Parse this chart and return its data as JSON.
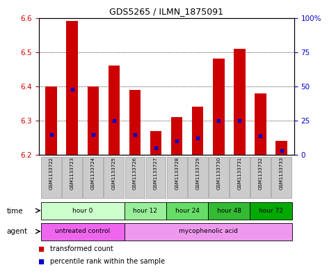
{
  "title": "GDS5265 / ILMN_1875091",
  "samples": [
    "GSM1133722",
    "GSM1133723",
    "GSM1133724",
    "GSM1133725",
    "GSM1133726",
    "GSM1133727",
    "GSM1133728",
    "GSM1133729",
    "GSM1133730",
    "GSM1133731",
    "GSM1133732",
    "GSM1133733"
  ],
  "transformed_count": [
    6.4,
    6.59,
    6.4,
    6.46,
    6.39,
    6.27,
    6.31,
    6.34,
    6.48,
    6.51,
    6.38,
    6.24
  ],
  "percentile_rank": [
    15,
    48,
    15,
    25,
    15,
    5,
    10,
    12,
    25,
    25,
    14,
    3
  ],
  "ylim_left": [
    6.2,
    6.6
  ],
  "ylim_right": [
    0,
    100
  ],
  "yticks_left": [
    6.2,
    6.3,
    6.4,
    6.5,
    6.6
  ],
  "yticks_right": [
    0,
    25,
    50,
    75,
    100
  ],
  "bar_color": "#cc0000",
  "percentile_color": "#0000cc",
  "baseline": 6.2,
  "time_groups": [
    {
      "label": "hour 0",
      "start": 0,
      "end": 4,
      "color": "#ccffcc"
    },
    {
      "label": "hour 12",
      "start": 4,
      "end": 6,
      "color": "#99ee99"
    },
    {
      "label": "hour 24",
      "start": 6,
      "end": 8,
      "color": "#66dd66"
    },
    {
      "label": "hour 48",
      "start": 8,
      "end": 10,
      "color": "#33bb33"
    },
    {
      "label": "hour 72",
      "start": 10,
      "end": 12,
      "color": "#00aa00"
    }
  ],
  "agent_groups": [
    {
      "label": "untreated control",
      "start": 0,
      "end": 4,
      "color": "#ee66ee"
    },
    {
      "label": "mycophenolic acid",
      "start": 4,
      "end": 12,
      "color": "#ee99ee"
    }
  ],
  "tick_label_color_left": "#cc0000",
  "tick_label_color_right": "#0000cc",
  "bg_color": "#ffffff"
}
